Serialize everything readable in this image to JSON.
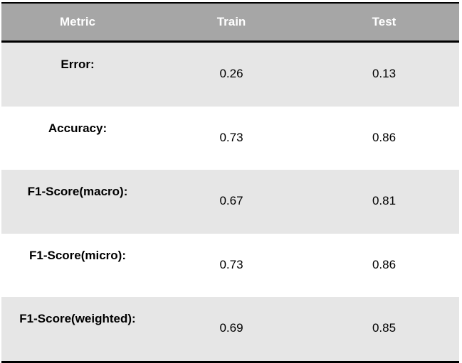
{
  "table": {
    "headers": [
      "Metric",
      "Train",
      "Test"
    ],
    "rows": [
      {
        "metric": "Error:",
        "train": "0.26",
        "test": "0.13"
      },
      {
        "metric": "Accuracy:",
        "train": "0.73",
        "test": "0.86"
      },
      {
        "metric": "F1-Score(macro):",
        "train": "0.67",
        "test": "0.81"
      },
      {
        "metric": "F1-Score(micro):",
        "train": "0.73",
        "test": "0.86"
      },
      {
        "metric": "F1-Score(weighted):",
        "train": "0.69",
        "test": "0.85"
      }
    ],
    "colors": {
      "header_bg": "#a6a6a6",
      "header_text": "#ffffff",
      "shaded_row_bg": "#e6e6e6",
      "rule": "#000000"
    }
  }
}
